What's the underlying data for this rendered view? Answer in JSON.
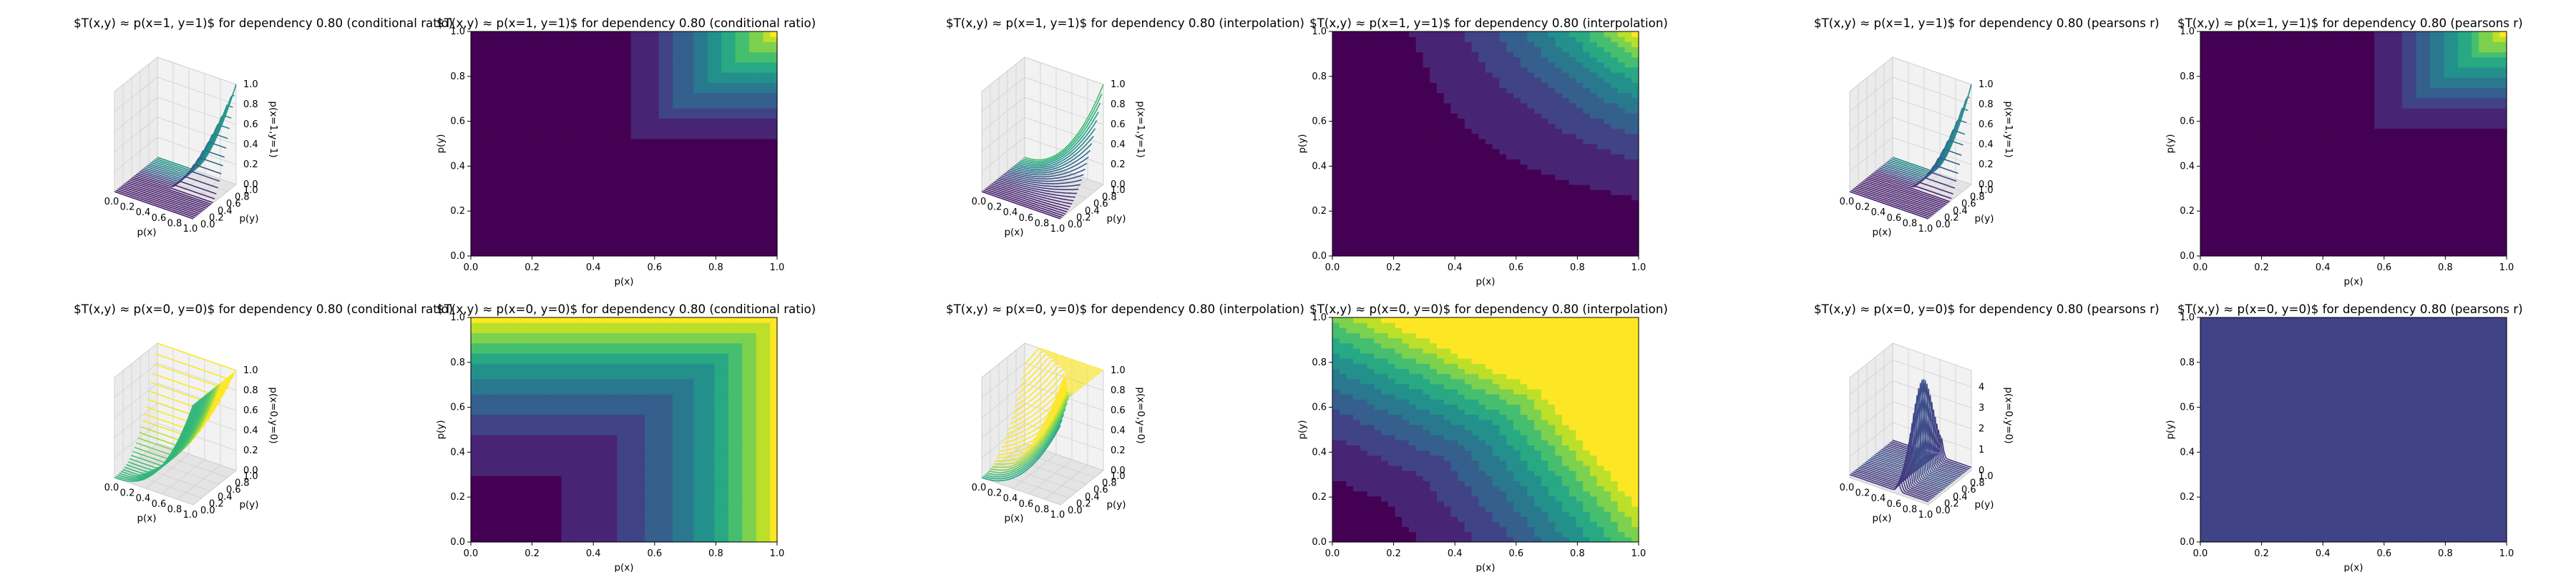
{
  "chart_data": [
    {
      "type": "surface3d",
      "title": "$T(x,y) ≈ p(x=1, y=1)$ for dependency 0.80 (conditional ratio)",
      "xlabel": "p(x)",
      "ylabel": "p(y)",
      "zlabel": "p(x=1,y=1)",
      "xlim": [
        0,
        1
      ],
      "ylim": [
        0,
        1
      ],
      "zlim": [
        0,
        1
      ],
      "xticks": [
        "0.0",
        "0.2",
        "0.4",
        "0.6",
        "0.8",
        "1.0"
      ],
      "yticks": [
        "0.0",
        "0.2",
        "0.4",
        "0.6",
        "0.8",
        "1.0"
      ],
      "zticks": [
        "0.0",
        "0.2",
        "0.4",
        "0.6",
        "0.8",
        "1.0"
      ],
      "colormap": "viridis",
      "grid": true
    },
    {
      "type": "heatmap",
      "title": "$T(x,y) ≈ p(x=1, y=1)$ for dependency 0.80 (conditional ratio)",
      "xlabel": "p(x)",
      "ylabel": "p(y)",
      "xlim": [
        0,
        1
      ],
      "ylim": [
        0,
        1
      ],
      "xticks": [
        "0.0",
        "0.2",
        "0.4",
        "0.6",
        "0.8",
        "1.0"
      ],
      "yticks": [
        "0.0",
        "0.2",
        "0.4",
        "0.6",
        "0.8",
        "1.0"
      ],
      "colormap": "viridis"
    },
    {
      "type": "surface3d",
      "title": "$T(x,y) ≈ p(x=1, y=1)$ for dependency 0.80 (interpolation)",
      "xlabel": "p(x)",
      "ylabel": "p(y)",
      "zlabel": "p(x=1,y=1)",
      "xlim": [
        0,
        1
      ],
      "ylim": [
        0,
        1
      ],
      "zlim": [
        0,
        1
      ],
      "xticks": [
        "0.0",
        "0.2",
        "0.4",
        "0.6",
        "0.8",
        "1.0"
      ],
      "yticks": [
        "0.0",
        "0.2",
        "0.4",
        "0.6",
        "0.8",
        "1.0"
      ],
      "zticks": [
        "0.0",
        "0.2",
        "0.4",
        "0.6",
        "0.8",
        "1.0"
      ],
      "colormap": "viridis",
      "grid": true
    },
    {
      "type": "heatmap",
      "title": "$T(x,y) ≈ p(x=1, y=1)$ for dependency 0.80 (interpolation)",
      "xlabel": "p(x)",
      "ylabel": "p(y)",
      "xlim": [
        0,
        1
      ],
      "ylim": [
        0,
        1
      ],
      "xticks": [
        "0.0",
        "0.2",
        "0.4",
        "0.6",
        "0.8",
        "1.0"
      ],
      "yticks": [
        "0.0",
        "0.2",
        "0.4",
        "0.6",
        "0.8",
        "1.0"
      ],
      "colormap": "viridis"
    },
    {
      "type": "surface3d",
      "title": "$T(x,y) ≈ p(x=1, y=1)$ for dependency 0.80 (pearsons r)",
      "xlabel": "p(x)",
      "ylabel": "p(y)",
      "zlabel": "p(x=1,y=1)",
      "xlim": [
        0,
        1
      ],
      "ylim": [
        0,
        1
      ],
      "zlim": [
        0,
        1
      ],
      "xticks": [
        "0.0",
        "0.2",
        "0.4",
        "0.6",
        "0.8",
        "1.0"
      ],
      "yticks": [
        "0.0",
        "0.2",
        "0.4",
        "0.6",
        "0.8",
        "1.0"
      ],
      "zticks": [
        "0.0",
        "0.2",
        "0.4",
        "0.6",
        "0.8",
        "1.0"
      ],
      "colormap": "viridis",
      "grid": true
    },
    {
      "type": "heatmap",
      "title": "$T(x,y) ≈ p(x=1, y=1)$ for dependency 0.80 (pearsons r)",
      "xlabel": "p(x)",
      "ylabel": "p(y)",
      "xlim": [
        0,
        1
      ],
      "ylim": [
        0,
        1
      ],
      "xticks": [
        "0.0",
        "0.2",
        "0.4",
        "0.6",
        "0.8",
        "1.0"
      ],
      "yticks": [
        "0.0",
        "0.2",
        "0.4",
        "0.6",
        "0.8",
        "1.0"
      ],
      "colormap": "viridis"
    },
    {
      "type": "surface3d",
      "title": "$T(x,y) ≈ p(x=0, y=0)$ for dependency 0.80 (conditional ratio)",
      "xlabel": "p(x)",
      "ylabel": "p(y)",
      "zlabel": "p(x=0,y=0)",
      "xlim": [
        0,
        1
      ],
      "ylim": [
        0,
        1
      ],
      "zlim": [
        0,
        1
      ],
      "xticks": [
        "0.0",
        "0.2",
        "0.4",
        "0.6",
        "0.8",
        "1.0"
      ],
      "yticks": [
        "0.0",
        "0.2",
        "0.4",
        "0.6",
        "0.8",
        "1.0"
      ],
      "zticks": [
        "0.0",
        "0.2",
        "0.4",
        "0.6",
        "0.8",
        "1.0"
      ],
      "colormap": "viridis",
      "grid": true
    },
    {
      "type": "heatmap",
      "title": "$T(x,y) ≈ p(x=0, y=0)$ for dependency 0.80 (conditional ratio)",
      "xlabel": "p(x)",
      "ylabel": "p(y)",
      "xlim": [
        0,
        1
      ],
      "ylim": [
        0,
        1
      ],
      "xticks": [
        "0.0",
        "0.2",
        "0.4",
        "0.6",
        "0.8",
        "1.0"
      ],
      "yticks": [
        "0.0",
        "0.2",
        "0.4",
        "0.6",
        "0.8",
        "1.0"
      ],
      "colormap": "viridis"
    },
    {
      "type": "surface3d",
      "title": "$T(x,y) ≈ p(x=0, y=0)$ for dependency 0.80 (interpolation)",
      "xlabel": "p(x)",
      "ylabel": "p(y)",
      "zlabel": "p(x=0,y=0)",
      "xlim": [
        0,
        1
      ],
      "ylim": [
        0,
        1
      ],
      "zlim": [
        0,
        1
      ],
      "xticks": [
        "0.0",
        "0.2",
        "0.4",
        "0.6",
        "0.8",
        "1.0"
      ],
      "yticks": [
        "0.0",
        "0.2",
        "0.4",
        "0.6",
        "0.8",
        "1.0"
      ],
      "zticks": [
        "0.0",
        "0.2",
        "0.4",
        "0.6",
        "0.8",
        "1.0"
      ],
      "colormap": "viridis",
      "grid": true
    },
    {
      "type": "heatmap",
      "title": "$T(x,y) ≈ p(x=0, y=0)$ for dependency 0.80 (interpolation)",
      "xlabel": "p(x)",
      "ylabel": "p(y)",
      "xlim": [
        0,
        1
      ],
      "ylim": [
        0,
        1
      ],
      "xticks": [
        "0.0",
        "0.2",
        "0.4",
        "0.6",
        "0.8",
        "1.0"
      ],
      "yticks": [
        "0.0",
        "0.2",
        "0.4",
        "0.6",
        "0.8",
        "1.0"
      ],
      "colormap": "viridis"
    },
    {
      "type": "surface3d",
      "title": "$T(x,y) ≈ p(x=0, y=0)$ for dependency 0.80 (pearsons r)",
      "xlabel": "p(x)",
      "ylabel": "p(y)",
      "zlabel": "p(x=0,y=0)",
      "xlim": [
        0,
        1
      ],
      "ylim": [
        0,
        1
      ],
      "zlim": [
        0,
        4.8
      ],
      "xticks": [
        "0.0",
        "0.2",
        "0.4",
        "0.6",
        "0.8",
        "1.0"
      ],
      "yticks": [
        "0.0",
        "0.2",
        "0.4",
        "0.6",
        "0.8",
        "1.0"
      ],
      "zticks": [
        "0",
        "1",
        "2",
        "3",
        "4"
      ],
      "colormap": "viridis",
      "grid": true
    },
    {
      "type": "heatmap",
      "title": "$T(x,y) ≈ p(x=0, y=0)$ for dependency 0.80 (pearsons r)",
      "xlabel": "p(x)",
      "ylabel": "p(y)",
      "xlim": [
        0,
        1
      ],
      "ylim": [
        0,
        1
      ],
      "xticks": [
        "0.0",
        "0.2",
        "0.4",
        "0.6",
        "0.8",
        "1.0"
      ],
      "yticks": [
        "0.0",
        "0.2",
        "0.4",
        "0.6",
        "0.8",
        "1.0"
      ],
      "colormap": "viridis"
    }
  ]
}
